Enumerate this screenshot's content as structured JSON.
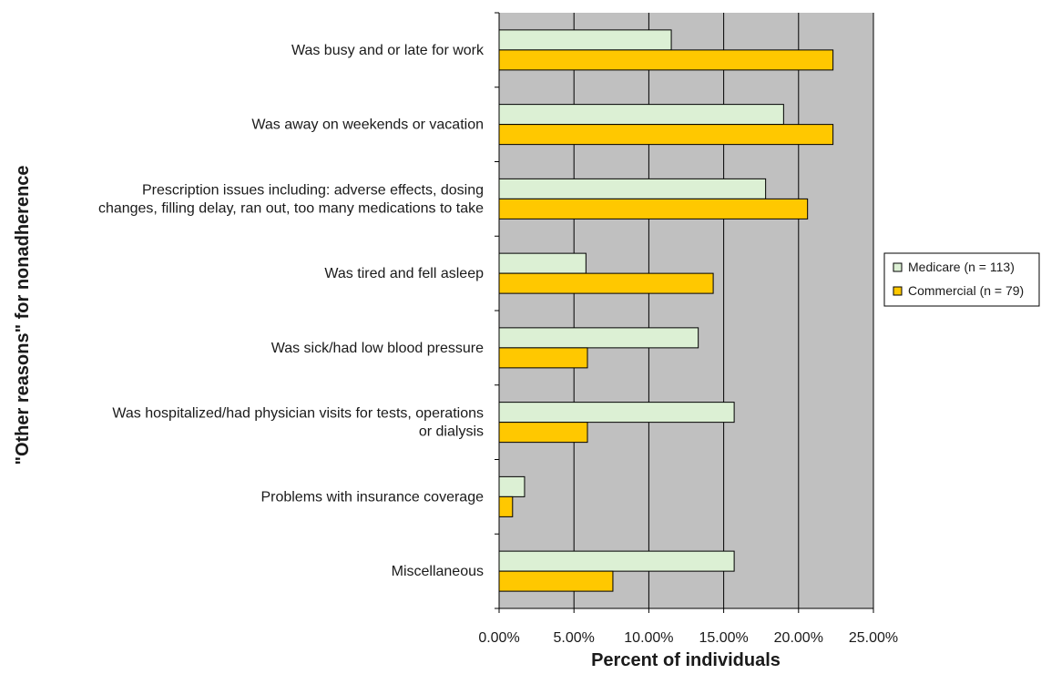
{
  "chart_data": {
    "type": "bar",
    "orientation": "horizontal",
    "categories": [
      "Was busy and or late for work",
      "Was away on weekends or vacation",
      "Prescription issues including: adverse effects, dosing changes, filling delay, ran out, too many medications to take",
      "Was tired and fell asleep",
      "Was sick/had low blood pressure",
      "Was hospitalized/had physician visits for tests, operations or dialysis",
      "Problems with insurance coverage",
      "Miscellaneous"
    ],
    "category_label_lines": [
      [
        "Was busy and or late for work"
      ],
      [
        "Was away on weekends or vacation"
      ],
      [
        "Prescription issues including: adverse effects, dosing",
        "changes, filling delay, ran out, too many medications to take"
      ],
      [
        "Was tired and fell asleep"
      ],
      [
        "Was sick/had low blood pressure"
      ],
      [
        "Was hospitalized/had physician visits for tests, operations",
        "or dialysis"
      ],
      [
        "Problems with insurance coverage"
      ],
      [
        "Miscellaneous"
      ]
    ],
    "series": [
      {
        "name": "Medicare (n = 113)",
        "color": "#dcf0d4",
        "values": [
          11.5,
          19.0,
          17.8,
          5.8,
          13.3,
          15.7,
          1.7,
          15.7
        ]
      },
      {
        "name": "Commercial (n = 79)",
        "color": "#ffc800",
        "values": [
          22.3,
          22.3,
          20.6,
          14.3,
          5.9,
          5.9,
          0.9,
          7.6
        ]
      }
    ],
    "xlim": [
      0,
      25
    ],
    "xticks": [
      0,
      5,
      10,
      15,
      20,
      25
    ],
    "xtick_labels": [
      "0.00%",
      "5.00%",
      "10.00%",
      "15.00%",
      "20.00%",
      "25.00%"
    ],
    "xlabel": "Percent of individuals",
    "ylabel": "\"Other reasons\" for nonadherence",
    "grid": "vertical",
    "plot_background": "#c0c0c0",
    "legend_position": "right"
  }
}
